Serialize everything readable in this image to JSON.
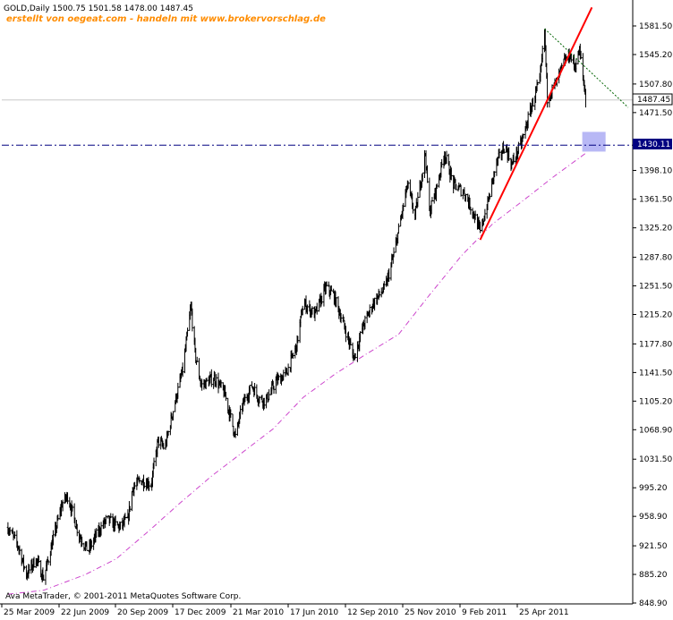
{
  "header": {
    "symbol_line": "GOLD,Daily  1500.75 1501.58 1478.00 1487.45",
    "promo_line": "erstellt von oegeat.com - handeln mit www.brokervorschlag.de"
  },
  "footer": {
    "copyright": "Ava MetaTrader, © 2001-2011 MetaQuotes Software Corp."
  },
  "colors": {
    "background": "#ffffff",
    "axis": "#000000",
    "price_bars": "#000000",
    "trend_line": "#ff0000",
    "resistance_line": "#006400",
    "moving_average": "#cc44cc",
    "support_line": "#000080",
    "highlight_zone": "#b8b8f5",
    "promo_text": "#ff8c00"
  },
  "chart_data": {
    "type": "line",
    "title": "GOLD,Daily",
    "ohlc_last": {
      "open": 1500.75,
      "high": 1501.58,
      "low": 1478.0,
      "close": 1487.45
    },
    "ylim": [
      848.9,
      1599.0
    ],
    "y_ticks": [
      "1581.50",
      "1545.20",
      "1507.80",
      "1471.50",
      "1430.11",
      "1398.10",
      "1361.50",
      "1325.20",
      "1287.80",
      "1251.50",
      "1215.20",
      "1177.80",
      "1141.50",
      "1105.20",
      "1068.90",
      "1031.50",
      "995.20",
      "958.90",
      "921.50",
      "885.20",
      "848.90"
    ],
    "x_ticks": [
      "25 Mar 2009",
      "22 Jun 2009",
      "20 Sep 2009",
      "17 Dec 2009",
      "21 Mar 2010",
      "17 Jun 2010",
      "12 Sep 2010",
      "25 Nov 2010",
      "9 Feb 2011",
      "25 Apr 2011"
    ],
    "current_price_label": "1487.45",
    "support_level_label": "1430.11",
    "series": [
      {
        "type": "price",
        "points": [
          [
            "2009-03-10",
            945
          ],
          [
            "2009-03-25",
            921
          ],
          [
            "2009-04-06",
            885
          ],
          [
            "2009-04-20",
            905
          ],
          [
            "2009-05-01",
            880
          ],
          [
            "2009-05-15",
            930
          ],
          [
            "2009-05-28",
            975
          ],
          [
            "2009-06-05",
            985
          ],
          [
            "2009-06-15",
            955
          ],
          [
            "2009-06-22",
            935
          ],
          [
            "2009-07-05",
            915
          ],
          [
            "2009-07-20",
            940
          ],
          [
            "2009-08-01",
            955
          ],
          [
            "2009-08-20",
            945
          ],
          [
            "2009-09-01",
            955
          ],
          [
            "2009-09-08",
            995
          ],
          [
            "2009-09-20",
            1005
          ],
          [
            "2009-10-05",
            1000
          ],
          [
            "2009-10-15",
            1055
          ],
          [
            "2009-10-25",
            1045
          ],
          [
            "2009-11-05",
            1090
          ],
          [
            "2009-11-20",
            1145
          ],
          [
            "2009-12-02",
            1225
          ],
          [
            "2009-12-08",
            1165
          ],
          [
            "2009-12-17",
            1125
          ],
          [
            "2010-01-05",
            1135
          ],
          [
            "2010-01-20",
            1115
          ],
          [
            "2010-02-05",
            1060
          ],
          [
            "2010-02-15",
            1100
          ],
          [
            "2010-03-01",
            1125
          ],
          [
            "2010-03-10",
            1110
          ],
          [
            "2010-03-21",
            1105
          ],
          [
            "2010-04-05",
            1130
          ],
          [
            "2010-04-20",
            1140
          ],
          [
            "2010-05-05",
            1175
          ],
          [
            "2010-05-15",
            1230
          ],
          [
            "2010-06-01",
            1215
          ],
          [
            "2010-06-17",
            1250
          ],
          [
            "2010-06-28",
            1240
          ],
          [
            "2010-07-10",
            1210
          ],
          [
            "2010-07-28",
            1160
          ],
          [
            "2010-08-10",
            1200
          ],
          [
            "2010-08-25",
            1230
          ],
          [
            "2010-09-12",
            1250
          ],
          [
            "2010-09-25",
            1295
          ],
          [
            "2010-10-05",
            1340
          ],
          [
            "2010-10-14",
            1380
          ],
          [
            "2010-10-25",
            1340
          ],
          [
            "2010-11-09",
            1420
          ],
          [
            "2010-11-15",
            1345
          ],
          [
            "2010-11-25",
            1375
          ],
          [
            "2010-12-07",
            1420
          ],
          [
            "2010-12-20",
            1380
          ],
          [
            "2011-01-05",
            1370
          ],
          [
            "2011-01-20",
            1340
          ],
          [
            "2011-01-28",
            1320
          ],
          [
            "2011-02-09",
            1360
          ],
          [
            "2011-02-20",
            1405
          ],
          [
            "2011-03-05",
            1430
          ],
          [
            "2011-03-15",
            1405
          ],
          [
            "2011-03-30",
            1435
          ],
          [
            "2011-04-10",
            1470
          ],
          [
            "2011-04-20",
            1500
          ],
          [
            "2011-04-25",
            1510
          ],
          [
            "2011-05-02",
            1575
          ],
          [
            "2011-05-06",
            1490
          ],
          [
            "2011-05-12",
            1500
          ],
          [
            "2011-05-20",
            1510
          ],
          [
            "2011-05-30",
            1535
          ],
          [
            "2011-06-08",
            1545
          ],
          [
            "2011-06-15",
            1530
          ],
          [
            "2011-06-22",
            1550
          ],
          [
            "2011-06-26",
            1525
          ],
          [
            "2011-07-01",
            1487.45
          ]
        ]
      },
      {
        "type": "moving_average",
        "points": [
          [
            "2009-03-10",
            860
          ],
          [
            "2009-05-01",
            865
          ],
          [
            "2009-07-01",
            885
          ],
          [
            "2009-08-15",
            905
          ],
          [
            "2009-10-01",
            940
          ],
          [
            "2009-11-15",
            975
          ],
          [
            "2010-01-01",
            1010
          ],
          [
            "2010-02-15",
            1040
          ],
          [
            "2010-04-01",
            1070
          ],
          [
            "2010-05-15",
            1110
          ],
          [
            "2010-07-01",
            1140
          ],
          [
            "2010-08-15",
            1165
          ],
          [
            "2010-10-01",
            1190
          ],
          [
            "2010-11-15",
            1240
          ],
          [
            "2011-01-01",
            1290
          ],
          [
            "2011-02-15",
            1330
          ],
          [
            "2011-04-01",
            1360
          ],
          [
            "2011-05-15",
            1390
          ],
          [
            "2011-07-01",
            1420
          ]
        ]
      },
      {
        "type": "trend_line",
        "points": [
          [
            "2011-01-28",
            1310
          ],
          [
            "2011-07-10",
            1605
          ]
        ]
      },
      {
        "type": "resistance_line",
        "points": [
          [
            "2011-05-02",
            1578
          ],
          [
            "2011-09-01",
            1478
          ]
        ]
      },
      {
        "type": "support_line",
        "points": [
          [
            "2009-03-01",
            1430.11
          ],
          [
            "2011-09-05",
            1430.11
          ]
        ]
      }
    ],
    "highlight_zone": {
      "x_from": "2011-06-26",
      "x_to": "2011-07-30",
      "y_from": 1422,
      "y_to": 1447
    },
    "x_range": [
      "2009-03-01",
      "2011-09-05"
    ]
  }
}
